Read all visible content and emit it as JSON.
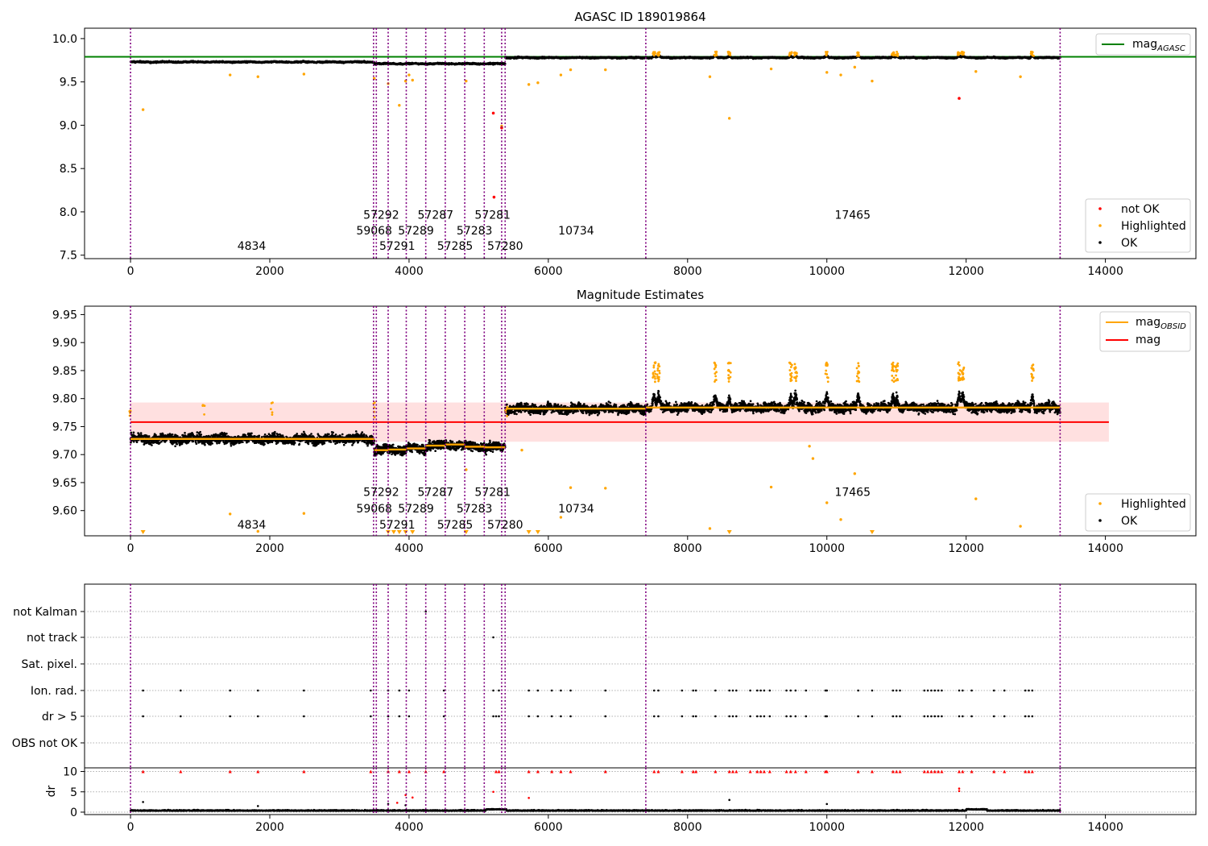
{
  "chart_data": [
    {
      "type": "scatter",
      "title": "AGASC ID 189019864",
      "xlabel": "",
      "ylabel": "",
      "xlim": [
        -660,
        15300
      ],
      "ylim": [
        7.46,
        10.12
      ],
      "xticks": [
        0,
        2000,
        4000,
        6000,
        8000,
        10000,
        12000,
        14000
      ],
      "xtick_labels": [
        "0",
        "2000",
        "4000",
        "6000",
        "8000",
        "10000",
        "12000",
        "14000"
      ],
      "yticks": [
        7.5,
        8.0,
        8.5,
        9.0,
        9.5,
        10.0
      ],
      "ytick_labels": [
        "7.5",
        "8.0",
        "8.5",
        "9.0",
        "9.5",
        "10.0"
      ],
      "grid": false,
      "reference_line": {
        "name_main": "mag",
        "name_sub": "AGASC",
        "y": 9.79,
        "color": "#008000"
      },
      "legend_top": {
        "placement": "top-right",
        "entries": [
          {
            "main": "mag",
            "sub": "AGASC",
            "color": "#008000"
          }
        ]
      },
      "legend_bottom": {
        "placement": "bottom-right",
        "entries": [
          {
            "label": "not OK",
            "color": "#ff0000"
          },
          {
            "label": "Highlighted",
            "color": "#ffa500"
          },
          {
            "label": "OK",
            "color": "#000000"
          }
        ]
      },
      "segments": [
        {
          "x": [
            0,
            3500
          ],
          "mean": 9.73
        },
        {
          "x": [
            3500,
            5380
          ],
          "mean": 9.71
        },
        {
          "x": [
            5380,
            13350
          ],
          "mean": 9.78
        }
      ],
      "series": [
        {
          "name": "not OK",
          "color": "#ff0000",
          "points": [
            [
              5210,
              9.14
            ],
            [
              5220,
              8.17
            ],
            [
              5330,
              8.97
            ],
            [
              11900,
              9.31
            ]
          ]
        },
        {
          "name": "Highlighted",
          "color": "#ffa500",
          "points": [
            [
              180,
              9.18
            ],
            [
              1430,
              9.58
            ],
            [
              1830,
              9.56
            ],
            [
              2490,
              9.59
            ],
            [
              3500,
              9.54
            ],
            [
              3700,
              9.48
            ],
            [
              3860,
              9.23
            ],
            [
              3950,
              9.51
            ],
            [
              4000,
              9.58
            ],
            [
              4050,
              9.52
            ],
            [
              4820,
              9.51
            ],
            [
              5330,
              8.99
            ],
            [
              5720,
              9.47
            ],
            [
              5850,
              9.49
            ],
            [
              6180,
              9.58
            ],
            [
              6320,
              9.64
            ],
            [
              6820,
              9.64
            ],
            [
              8320,
              9.56
            ],
            [
              8600,
              9.08
            ],
            [
              9200,
              9.65
            ],
            [
              10000,
              9.61
            ],
            [
              10200,
              9.58
            ],
            [
              10400,
              9.67
            ],
            [
              10650,
              9.51
            ],
            [
              12140,
              9.62
            ],
            [
              12780,
              9.56
            ]
          ]
        },
        {
          "name": "OK",
          "color": "#000000"
        }
      ],
      "obsids": [
        {
          "label": "4834",
          "x": 1740,
          "y": 7.56
        },
        {
          "label": "59068",
          "x": 3500,
          "y": 7.74
        },
        {
          "label": "57292",
          "x": 3600,
          "y": 7.92
        },
        {
          "label": "57291",
          "x": 3830,
          "y": 7.56
        },
        {
          "label": "57289",
          "x": 4100,
          "y": 7.74
        },
        {
          "label": "57287",
          "x": 4380,
          "y": 7.92
        },
        {
          "label": "57285",
          "x": 4660,
          "y": 7.56
        },
        {
          "label": "57283",
          "x": 4940,
          "y": 7.74
        },
        {
          "label": "57281",
          "x": 5200,
          "y": 7.92
        },
        {
          "label": "57280",
          "x": 5380,
          "y": 7.56
        },
        {
          "label": "10734",
          "x": 6400,
          "y": 7.74
        },
        {
          "label": "17465",
          "x": 10370,
          "y": 7.92
        }
      ]
    },
    {
      "type": "scatter",
      "title": "Magnitude Estimates",
      "xlabel": "",
      "ylabel": "",
      "xlim": [
        -660,
        15300
      ],
      "ylim": [
        9.555,
        9.965
      ],
      "xticks": [
        0,
        2000,
        4000,
        6000,
        8000,
        10000,
        12000,
        14000
      ],
      "xtick_labels": [
        "0",
        "2000",
        "4000",
        "6000",
        "8000",
        "10000",
        "12000",
        "14000"
      ],
      "yticks": [
        9.6,
        9.65,
        9.7,
        9.75,
        9.8,
        9.85,
        9.9,
        9.95
      ],
      "ytick_labels": [
        "9.60",
        "9.65",
        "9.70",
        "9.75",
        "9.80",
        "9.85",
        "9.90",
        "9.95"
      ],
      "grid": false,
      "mag_line": {
        "name": "mag",
        "y": 9.758,
        "x": [
          0,
          14050
        ],
        "band": [
          9.723,
          9.793
        ],
        "color": "#ff0000"
      },
      "legend_top": {
        "placement": "top-right",
        "entries": [
          {
            "main": "mag",
            "sub": "OBSID",
            "color": "#ffa500"
          },
          {
            "main": "mag",
            "sub": "",
            "color": "#ff0000"
          }
        ]
      },
      "legend_bottom": {
        "placement": "bottom-right",
        "entries": [
          {
            "label": "Highlighted",
            "color": "#ffa500"
          },
          {
            "label": "OK",
            "color": "#000000"
          }
        ]
      },
      "obsid_means": [
        {
          "x": [
            0,
            3500
          ],
          "y": 9.728
        },
        {
          "x": [
            3500,
            3700
          ],
          "y": 9.708
        },
        {
          "x": [
            3700,
            3960
          ],
          "y": 9.709
        },
        {
          "x": [
            3960,
            4240
          ],
          "y": 9.711
        },
        {
          "x": [
            4240,
            4520
          ],
          "y": 9.716
        },
        {
          "x": [
            4520,
            4800
          ],
          "y": 9.718
        },
        {
          "x": [
            4800,
            5080
          ],
          "y": 9.714
        },
        {
          "x": [
            5080,
            5380
          ],
          "y": 9.713
        },
        {
          "x": [
            5380,
            7400
          ],
          "y": 9.782
        },
        {
          "x": [
            7400,
            13350
          ],
          "y": 9.784
        }
      ],
      "highlighted_points": [
        [
          1430,
          9.594
        ],
        [
          1830,
          9.563
        ],
        [
          2490,
          9.595
        ],
        [
          4820,
          9.673
        ],
        [
          5620,
          9.708
        ],
        [
          6320,
          9.641
        ],
        [
          6820,
          9.64
        ],
        [
          8320,
          9.568
        ],
        [
          9200,
          9.642
        ],
        [
          10000,
          9.614
        ],
        [
          10200,
          9.584
        ],
        [
          10400,
          9.666
        ],
        [
          12140,
          9.621
        ],
        [
          12780,
          9.572
        ],
        [
          6180,
          9.588
        ],
        [
          9800,
          9.693
        ],
        [
          9750,
          9.715
        ]
      ],
      "offscale_points": [
        180,
        3700,
        3780,
        3860,
        3950,
        4050,
        4820,
        5720,
        5850,
        8600,
        10650
      ],
      "obsids": [
        {
          "label": "4834",
          "x": 1740,
          "y": 9.568
        },
        {
          "label": "59068",
          "x": 3500,
          "y": 9.597
        },
        {
          "label": "57292",
          "x": 3600,
          "y": 9.626
        },
        {
          "label": "57291",
          "x": 3830,
          "y": 9.568
        },
        {
          "label": "57289",
          "x": 4100,
          "y": 9.597
        },
        {
          "label": "57287",
          "x": 4380,
          "y": 9.626
        },
        {
          "label": "57285",
          "x": 4660,
          "y": 9.568
        },
        {
          "label": "57283",
          "x": 4940,
          "y": 9.597
        },
        {
          "label": "57281",
          "x": 5200,
          "y": 9.626
        },
        {
          "label": "57280",
          "x": 5380,
          "y": 9.568
        },
        {
          "label": "10734",
          "x": 6400,
          "y": 9.597
        },
        {
          "label": "17465",
          "x": 10370,
          "y": 9.626
        }
      ]
    },
    {
      "type": "scatter",
      "title": "",
      "xlabel": "",
      "ylabel": "",
      "xlim": [
        -660,
        15300
      ],
      "flag_rows": [
        "not Kalman",
        "not track",
        "Sat. pixel.",
        "Ion. rad.",
        "dr > 5",
        "OBS not OK"
      ],
      "flag_points": {
        "not Kalman": [
          4240
        ],
        "not track": [
          5210
        ],
        "Sat. pixel.": [],
        "Ion. rad.": [
          180,
          720,
          1430,
          1830,
          2490,
          3450,
          3700,
          3860,
          4000,
          4500,
          5210,
          5290,
          5720,
          5850,
          6050,
          6180,
          6320,
          6820,
          7520,
          7580,
          7920,
          8080,
          8120,
          8400,
          8600,
          8650,
          8700,
          8900,
          9000,
          9050,
          9100,
          9180,
          9420,
          9480,
          9550,
          9700,
          9980,
          10000,
          10450,
          10650,
          10950,
          11000,
          11050,
          11400,
          11450,
          11500,
          11550,
          11600,
          11650,
          11900,
          11950,
          12080,
          12400,
          12550,
          12850,
          12900,
          12950
        ],
        "dr > 5": [
          180,
          720,
          1430,
          1830,
          2490,
          3450,
          3700,
          3860,
          4000,
          4500,
          5210,
          5250,
          5290,
          5720,
          5850,
          6050,
          6180,
          6320,
          6820,
          7520,
          7580,
          7920,
          8080,
          8120,
          8400,
          8600,
          8650,
          8700,
          8900,
          9000,
          9050,
          9100,
          9180,
          9420,
          9480,
          9550,
          9700,
          9980,
          10000,
          10450,
          10650,
          10950,
          11000,
          11050,
          11400,
          11450,
          11500,
          11550,
          11600,
          11650,
          11900,
          11950,
          12080,
          12400,
          12550,
          12850,
          12900,
          12950
        ],
        "OBS not OK": []
      }
    },
    {
      "type": "scatter",
      "title": "",
      "xlabel": "",
      "ylabel": "dr",
      "xlim": [
        -660,
        15300
      ],
      "ylim": [
        -0.6,
        10.9
      ],
      "xticks": [
        0,
        2000,
        4000,
        6000,
        8000,
        10000,
        12000,
        14000
      ],
      "xtick_labels": [
        "0",
        "2000",
        "4000",
        "6000",
        "8000",
        "10000",
        "12000",
        "14000"
      ],
      "yticks": [
        0,
        5,
        10
      ],
      "ytick_labels": [
        "0",
        "5",
        "10"
      ],
      "clipped_value": 10,
      "clipped_points": [
        180,
        720,
        1430,
        1830,
        2490,
        3450,
        3700,
        3860,
        4000,
        4240,
        4500,
        5250,
        5290,
        5720,
        5850,
        6050,
        6180,
        6320,
        6820,
        7520,
        7580,
        7920,
        8080,
        8120,
        8400,
        8600,
        8650,
        8700,
        8900,
        9000,
        9050,
        9100,
        9180,
        9420,
        9480,
        9550,
        9700,
        9980,
        10000,
        10450,
        10650,
        10950,
        11000,
        11050,
        11400,
        11450,
        11500,
        11550,
        11600,
        11650,
        11900,
        11950,
        12080,
        12400,
        12550,
        12850,
        12900,
        12950
      ],
      "red_points": [
        [
          3830,
          2.3
        ],
        [
          3950,
          4.2
        ],
        [
          4050,
          3.6
        ],
        [
          5210,
          5.0
        ],
        [
          5720,
          3.5
        ],
        [
          11900,
          5.2
        ],
        [
          11900,
          5.8
        ]
      ],
      "black_points": [
        [
          180,
          2.5
        ],
        [
          1830,
          1.5
        ],
        [
          3700,
          2.0
        ],
        [
          3950,
          1.7
        ],
        [
          8600,
          3.0
        ],
        [
          10000,
          2.0
        ]
      ]
    }
  ],
  "obsid_boundaries": [
    0,
    3490,
    3530,
    3700,
    3960,
    4240,
    4520,
    4800,
    5080,
    5330,
    5380,
    7400,
    13350
  ],
  "colors": {
    "ok": "#000000",
    "highlighted": "#ffa500",
    "not_ok": "#ff0000",
    "agasc": "#008000",
    "boundary": "#800080",
    "band": "#ffcccc"
  }
}
